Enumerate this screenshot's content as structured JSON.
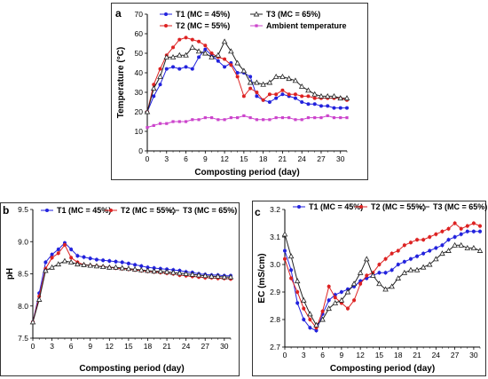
{
  "chart_data": [
    {
      "type": "line",
      "panel_label": "a",
      "xlabel": "Composting period (day)",
      "ylabel": "Temperature (°C)",
      "xlim": [
        0,
        31
      ],
      "ylim": [
        0,
        70
      ],
      "xticks": [
        0,
        3,
        6,
        9,
        12,
        15,
        18,
        21,
        24,
        27,
        30
      ],
      "yticks": [
        0,
        10,
        20,
        30,
        40,
        50,
        60,
        70
      ],
      "x": [
        0,
        1,
        2,
        3,
        4,
        5,
        6,
        7,
        8,
        9,
        10,
        11,
        12,
        13,
        14,
        15,
        16,
        17,
        18,
        19,
        20,
        21,
        22,
        23,
        24,
        25,
        26,
        27,
        28,
        29,
        30,
        31
      ],
      "legend_position": "top",
      "series": [
        {
          "name": "T1 (MC = 45%)",
          "color": "#2222dd",
          "marker": "circle",
          "values": [
            20,
            28,
            34,
            42,
            43,
            42,
            43,
            42,
            48,
            52,
            49,
            46,
            43,
            45,
            40,
            40,
            38,
            28,
            26,
            25,
            27,
            29,
            28,
            27,
            25,
            24,
            24,
            23,
            23,
            22,
            22,
            22
          ]
        },
        {
          "name": "T2 (MC = 55%)",
          "color": "#dd2222",
          "marker": "circle",
          "values": [
            20,
            34,
            42,
            49,
            53,
            57,
            58,
            57,
            56,
            54,
            50,
            48,
            47,
            44,
            38,
            28,
            32,
            30,
            26,
            29,
            29,
            31,
            29,
            29,
            28,
            28,
            27,
            27,
            27,
            27,
            27,
            26
          ]
        },
        {
          "name": "T3 (MC = 65%)",
          "color": "#222222",
          "marker": "triangle",
          "values": [
            20,
            32,
            38,
            48,
            48,
            49,
            49,
            53,
            51,
            50,
            48,
            49,
            56,
            51,
            45,
            41,
            35,
            35,
            34,
            35,
            38,
            38,
            37,
            36,
            33,
            31,
            29,
            28,
            28,
            28,
            27,
            27
          ]
        },
        {
          "name": "Ambient temperature",
          "color": "#cc44cc",
          "marker": "square",
          "values": [
            12,
            13,
            14,
            14,
            15,
            15,
            15,
            16,
            16,
            17,
            17,
            16,
            16,
            17,
            17,
            18,
            17,
            16,
            16,
            16,
            17,
            17,
            17,
            16,
            16,
            17,
            17,
            17,
            18,
            17,
            17,
            17
          ]
        }
      ]
    },
    {
      "type": "line",
      "panel_label": "b",
      "xlabel": "Composting period (day)",
      "ylabel": "pH",
      "xlim": [
        0,
        31
      ],
      "ylim": [
        7.5,
        9.5
      ],
      "xticks": [
        0,
        3,
        6,
        9,
        12,
        15,
        18,
        21,
        24,
        27,
        30
      ],
      "yticks": [
        7.5,
        8.0,
        8.5,
        9.0,
        9.5
      ],
      "x": [
        0,
        1,
        2,
        3,
        4,
        5,
        6,
        7,
        8,
        9,
        10,
        11,
        12,
        13,
        14,
        15,
        16,
        17,
        18,
        19,
        20,
        21,
        22,
        23,
        24,
        25,
        26,
        27,
        28,
        29,
        30,
        31
      ],
      "legend_position": "top",
      "series": [
        {
          "name": "T1 (MC = 45%)",
          "color": "#2222dd",
          "marker": "circle",
          "values": [
            7.75,
            8.2,
            8.68,
            8.8,
            8.88,
            8.98,
            8.88,
            8.78,
            8.76,
            8.74,
            8.72,
            8.71,
            8.7,
            8.69,
            8.68,
            8.66,
            8.64,
            8.62,
            8.6,
            8.59,
            8.58,
            8.57,
            8.56,
            8.55,
            8.53,
            8.52,
            8.5,
            8.49,
            8.48,
            8.48,
            8.47,
            8.47
          ]
        },
        {
          "name": "T2 (MC = 55%)",
          "color": "#dd2222",
          "marker": "circle",
          "values": [
            7.75,
            8.15,
            8.58,
            8.75,
            8.82,
            8.95,
            8.75,
            8.68,
            8.64,
            8.63,
            8.62,
            8.61,
            8.6,
            8.59,
            8.58,
            8.57,
            8.56,
            8.55,
            8.54,
            8.53,
            8.52,
            8.51,
            8.5,
            8.48,
            8.47,
            8.46,
            8.45,
            8.44,
            8.44,
            8.43,
            8.43,
            8.42
          ]
        },
        {
          "name": "T3 (MC = 65%)",
          "color": "#222222",
          "marker": "triangle",
          "values": [
            7.75,
            8.1,
            8.55,
            8.6,
            8.65,
            8.7,
            8.68,
            8.65,
            8.64,
            8.63,
            8.62,
            8.61,
            8.6,
            8.6,
            8.59,
            8.58,
            8.57,
            8.56,
            8.55,
            8.54,
            8.54,
            8.53,
            8.52,
            8.51,
            8.5,
            8.49,
            8.48,
            8.47,
            8.46,
            8.46,
            8.45,
            8.45
          ]
        }
      ]
    },
    {
      "type": "line",
      "panel_label": "c",
      "xlabel": "Composting period (day)",
      "ylabel": "EC (mS/cm)",
      "xlim": [
        0,
        31
      ],
      "ylim": [
        2.7,
        3.2
      ],
      "xticks": [
        0,
        3,
        6,
        9,
        12,
        15,
        18,
        21,
        24,
        27,
        30
      ],
      "yticks": [
        2.7,
        2.8,
        2.9,
        3.0,
        3.1,
        3.2
      ],
      "x": [
        0,
        1,
        2,
        3,
        4,
        5,
        6,
        7,
        8,
        9,
        10,
        11,
        12,
        13,
        14,
        15,
        16,
        17,
        18,
        19,
        20,
        21,
        22,
        23,
        24,
        25,
        26,
        27,
        28,
        29,
        30,
        31
      ],
      "legend_position": "top",
      "series": [
        {
          "name": "T1 (MC = 45%)",
          "color": "#2222dd",
          "marker": "circle",
          "values": [
            3.05,
            2.98,
            2.86,
            2.8,
            2.77,
            2.76,
            2.82,
            2.87,
            2.89,
            2.9,
            2.91,
            2.92,
            2.94,
            2.95,
            2.96,
            2.97,
            2.97,
            2.98,
            3.0,
            3.01,
            3.02,
            3.03,
            3.04,
            3.05,
            3.06,
            3.07,
            3.09,
            3.1,
            3.11,
            3.12,
            3.12,
            3.12
          ]
        },
        {
          "name": "T2 (MC = 55%)",
          "color": "#dd2222",
          "marker": "circle",
          "values": [
            3.02,
            2.95,
            2.9,
            2.84,
            2.8,
            2.77,
            2.83,
            2.92,
            2.88,
            2.86,
            2.84,
            2.87,
            2.93,
            2.96,
            2.97,
            3.0,
            3.02,
            3.04,
            3.05,
            3.07,
            3.08,
            3.09,
            3.09,
            3.1,
            3.11,
            3.12,
            3.13,
            3.15,
            3.13,
            3.14,
            3.15,
            3.14
          ]
        },
        {
          "name": "T3 (MC = 65%)",
          "color": "#222222",
          "marker": "triangle",
          "values": [
            3.11,
            3.03,
            2.94,
            2.87,
            2.82,
            2.78,
            2.8,
            2.84,
            2.86,
            2.87,
            2.9,
            2.93,
            2.97,
            3.02,
            2.96,
            2.93,
            2.91,
            2.92,
            2.95,
            2.97,
            2.98,
            2.98,
            2.99,
            3.0,
            3.02,
            3.04,
            3.05,
            3.07,
            3.07,
            3.06,
            3.06,
            3.05
          ]
        }
      ]
    }
  ]
}
